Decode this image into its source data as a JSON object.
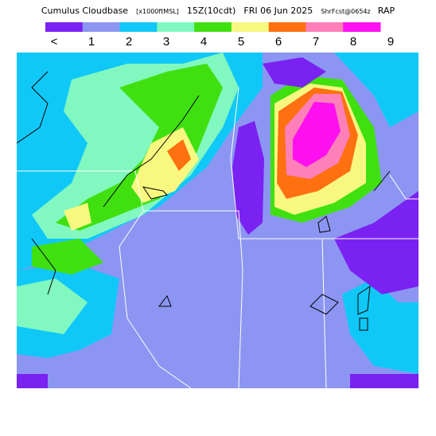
{
  "header": {
    "title": "Cumulus Cloudbase",
    "units": "[x1000ftMSL]",
    "valid_time": "15Z(10cdt)",
    "date": "FRI 06 Jun 2025",
    "forecast": "ShrFcst@0654z",
    "model": "RAP"
  },
  "legend": {
    "labels": [
      "<",
      "1",
      "2",
      "3",
      "4",
      "5",
      "6",
      "7",
      "8",
      "9"
    ],
    "colors": [
      "#7a22f2",
      "#8c96f2",
      "#10c8f8",
      "#80f8c0",
      "#40e010",
      "#f8f880",
      "#ff7010",
      "#ff80b8",
      "#ff10f0"
    ]
  }
}
